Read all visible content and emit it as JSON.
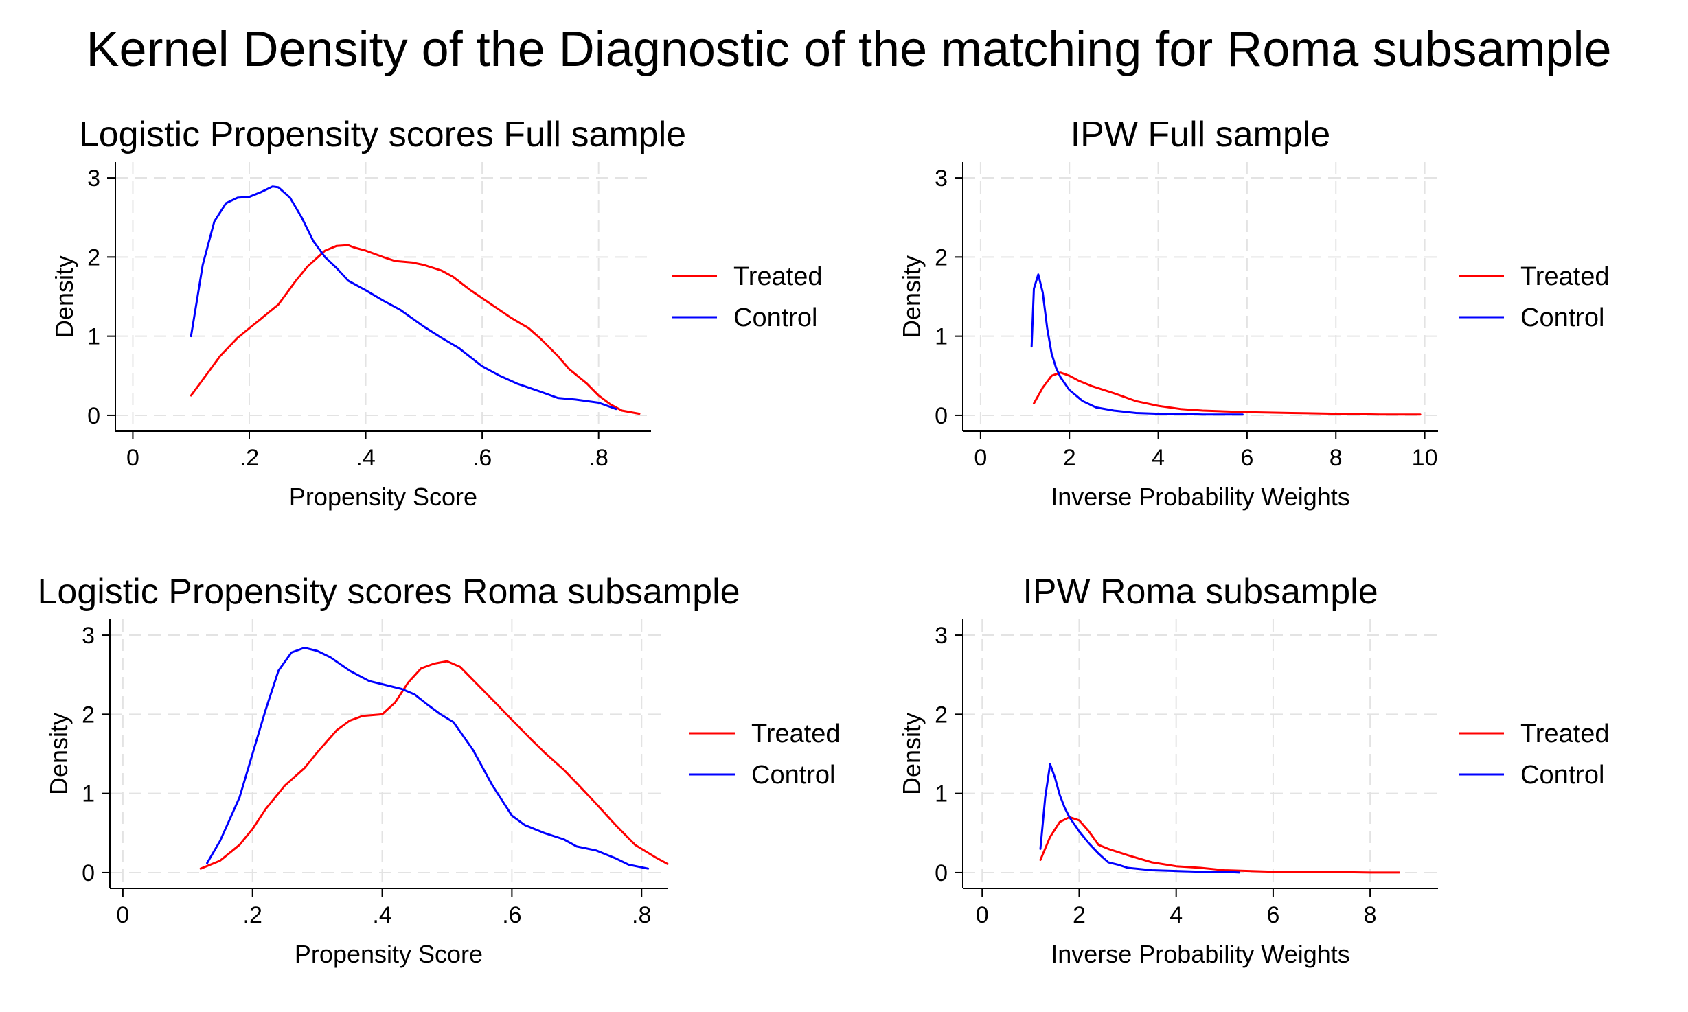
{
  "figure": {
    "title": "Kernel Density of the Diagnostic of the matching for Roma subsample"
  },
  "colors": {
    "treated": "#ff0000",
    "control": "#0000ff",
    "grid": "#e3e3e3",
    "axis": "#000000"
  },
  "chart_data": [
    {
      "type": "line",
      "title": "Logistic Propensity scores Full sample",
      "xlabel": "Propensity Score",
      "ylabel": "Density",
      "xlim": [
        -0.03,
        0.89
      ],
      "ylim": [
        -0.2,
        3.2
      ],
      "xticks": [
        0,
        0.2,
        0.4,
        0.6,
        0.8
      ],
      "xtick_labels": [
        "0",
        ".2",
        ".4",
        ".6",
        ".8"
      ],
      "yticks": [
        0,
        1,
        2,
        3
      ],
      "ytick_labels": [
        "0",
        "1",
        "2",
        "3"
      ],
      "grid": true,
      "legend_position": "right",
      "series": [
        {
          "name": "Treated",
          "color_key": "treated",
          "x": [
            0.1,
            0.12,
            0.15,
            0.18,
            0.2,
            0.22,
            0.25,
            0.28,
            0.3,
            0.33,
            0.35,
            0.37,
            0.38,
            0.4,
            0.43,
            0.45,
            0.48,
            0.5,
            0.53,
            0.55,
            0.58,
            0.6,
            0.63,
            0.65,
            0.68,
            0.7,
            0.73,
            0.75,
            0.78,
            0.8,
            0.82,
            0.84,
            0.87
          ],
          "y": [
            0.25,
            0.45,
            0.75,
            0.98,
            1.1,
            1.22,
            1.4,
            1.7,
            1.88,
            2.08,
            2.14,
            2.15,
            2.12,
            2.08,
            2.0,
            1.95,
            1.93,
            1.9,
            1.83,
            1.75,
            1.58,
            1.48,
            1.33,
            1.23,
            1.1,
            0.97,
            0.75,
            0.58,
            0.4,
            0.25,
            0.14,
            0.06,
            0.02
          ]
        },
        {
          "name": "Control",
          "color_key": "control",
          "x": [
            0.1,
            0.12,
            0.14,
            0.16,
            0.18,
            0.2,
            0.22,
            0.24,
            0.25,
            0.27,
            0.29,
            0.31,
            0.33,
            0.35,
            0.37,
            0.4,
            0.43,
            0.46,
            0.5,
            0.53,
            0.56,
            0.6,
            0.63,
            0.66,
            0.7,
            0.73,
            0.76,
            0.8,
            0.83
          ],
          "y": [
            1.0,
            1.9,
            2.45,
            2.68,
            2.75,
            2.76,
            2.82,
            2.89,
            2.88,
            2.75,
            2.5,
            2.2,
            2.0,
            1.86,
            1.7,
            1.58,
            1.45,
            1.33,
            1.12,
            0.98,
            0.85,
            0.62,
            0.5,
            0.4,
            0.3,
            0.22,
            0.2,
            0.16,
            0.08
          ]
        }
      ]
    },
    {
      "type": "line",
      "title": "IPW Full sample",
      "xlabel": "Inverse Probability Weights",
      "ylabel": "Density",
      "xlim": [
        -0.4,
        10.3
      ],
      "ylim": [
        -0.2,
        3.2
      ],
      "xticks": [
        0,
        2,
        4,
        6,
        8,
        10
      ],
      "xtick_labels": [
        "0",
        "2",
        "4",
        "6",
        "8",
        "10"
      ],
      "yticks": [
        0,
        1,
        2,
        3
      ],
      "ytick_labels": [
        "0",
        "1",
        "2",
        "3"
      ],
      "grid": true,
      "legend_position": "right",
      "series": [
        {
          "name": "Treated",
          "color_key": "treated",
          "x": [
            1.2,
            1.4,
            1.6,
            1.8,
            2.0,
            2.2,
            2.5,
            3.0,
            3.5,
            4.0,
            4.5,
            5.0,
            6.0,
            7.0,
            8.0,
            9.0,
            9.9
          ],
          "y": [
            0.15,
            0.35,
            0.5,
            0.54,
            0.5,
            0.44,
            0.37,
            0.28,
            0.18,
            0.12,
            0.08,
            0.06,
            0.04,
            0.03,
            0.02,
            0.01,
            0.01
          ]
        },
        {
          "name": "Control",
          "color_key": "control",
          "x": [
            1.15,
            1.2,
            1.3,
            1.4,
            1.5,
            1.6,
            1.7,
            1.8,
            2.0,
            2.3,
            2.6,
            3.0,
            3.5,
            4.0,
            4.5,
            5.0,
            5.5,
            5.9
          ],
          "y": [
            0.87,
            1.6,
            1.78,
            1.55,
            1.1,
            0.78,
            0.6,
            0.48,
            0.32,
            0.18,
            0.1,
            0.06,
            0.03,
            0.02,
            0.02,
            0.01,
            0.01,
            0.01
          ]
        }
      ]
    },
    {
      "type": "line",
      "title": "Logistic Propensity scores Roma subsample",
      "xlabel": "Propensity Score",
      "ylabel": "Density",
      "xlim": [
        -0.02,
        0.84
      ],
      "ylim": [
        -0.2,
        3.2
      ],
      "xticks": [
        0,
        0.2,
        0.4,
        0.6,
        0.8
      ],
      "xtick_labels": [
        "0",
        ".2",
        ".4",
        ".6",
        ".8"
      ],
      "yticks": [
        0,
        1,
        2,
        3
      ],
      "ytick_labels": [
        "0",
        "1",
        "2",
        "3"
      ],
      "grid": true,
      "legend_position": "right",
      "series": [
        {
          "name": "Treated",
          "color_key": "treated",
          "x": [
            0.12,
            0.15,
            0.18,
            0.2,
            0.22,
            0.25,
            0.28,
            0.3,
            0.33,
            0.35,
            0.37,
            0.4,
            0.42,
            0.44,
            0.46,
            0.48,
            0.5,
            0.52,
            0.55,
            0.58,
            0.6,
            0.63,
            0.65,
            0.68,
            0.7,
            0.73,
            0.76,
            0.79,
            0.82,
            0.84
          ],
          "y": [
            0.05,
            0.15,
            0.35,
            0.55,
            0.8,
            1.1,
            1.32,
            1.52,
            1.8,
            1.92,
            1.98,
            2.0,
            2.15,
            2.4,
            2.58,
            2.64,
            2.67,
            2.6,
            2.35,
            2.1,
            1.93,
            1.68,
            1.52,
            1.3,
            1.13,
            0.87,
            0.6,
            0.35,
            0.2,
            0.11
          ]
        },
        {
          "name": "Control",
          "color_key": "control",
          "x": [
            0.13,
            0.15,
            0.18,
            0.2,
            0.22,
            0.24,
            0.26,
            0.28,
            0.3,
            0.32,
            0.35,
            0.38,
            0.4,
            0.43,
            0.45,
            0.47,
            0.49,
            0.51,
            0.54,
            0.57,
            0.6,
            0.62,
            0.65,
            0.68,
            0.7,
            0.73,
            0.76,
            0.78,
            0.81
          ],
          "y": [
            0.12,
            0.4,
            0.95,
            1.5,
            2.05,
            2.55,
            2.78,
            2.84,
            2.8,
            2.72,
            2.55,
            2.42,
            2.38,
            2.32,
            2.25,
            2.12,
            2.0,
            1.9,
            1.55,
            1.1,
            0.72,
            0.6,
            0.5,
            0.42,
            0.33,
            0.28,
            0.18,
            0.1,
            0.05
          ]
        }
      ]
    },
    {
      "type": "line",
      "title": "IPW Roma subsample",
      "xlabel": "Inverse Probability Weights",
      "ylabel": "Density",
      "xlim": [
        -0.4,
        9.4
      ],
      "ylim": [
        -0.2,
        3.2
      ],
      "xticks": [
        0,
        2,
        4,
        6,
        8
      ],
      "xtick_labels": [
        "0",
        "2",
        "4",
        "6",
        "8"
      ],
      "yticks": [
        0,
        1,
        2,
        3
      ],
      "ytick_labels": [
        "0",
        "1",
        "2",
        "3"
      ],
      "grid": true,
      "legend_position": "right",
      "series": [
        {
          "name": "Treated",
          "color_key": "treated",
          "x": [
            1.2,
            1.4,
            1.6,
            1.8,
            2.0,
            2.2,
            2.4,
            2.6,
            3.0,
            3.5,
            4.0,
            4.5,
            5.0,
            5.5,
            6.0,
            7.0,
            8.0,
            8.6
          ],
          "y": [
            0.16,
            0.45,
            0.64,
            0.7,
            0.66,
            0.52,
            0.35,
            0.3,
            0.22,
            0.13,
            0.08,
            0.06,
            0.03,
            0.02,
            0.01,
            0.01,
            0.0,
            0.0
          ]
        },
        {
          "name": "Control",
          "color_key": "control",
          "x": [
            1.2,
            1.3,
            1.4,
            1.5,
            1.6,
            1.7,
            1.8,
            2.0,
            2.2,
            2.4,
            2.6,
            2.8,
            3.0,
            3.5,
            4.0,
            4.5,
            5.0,
            5.3
          ],
          "y": [
            0.3,
            0.95,
            1.37,
            1.2,
            0.98,
            0.82,
            0.7,
            0.52,
            0.37,
            0.24,
            0.13,
            0.1,
            0.06,
            0.03,
            0.02,
            0.01,
            0.01,
            0.0
          ]
        }
      ]
    }
  ]
}
